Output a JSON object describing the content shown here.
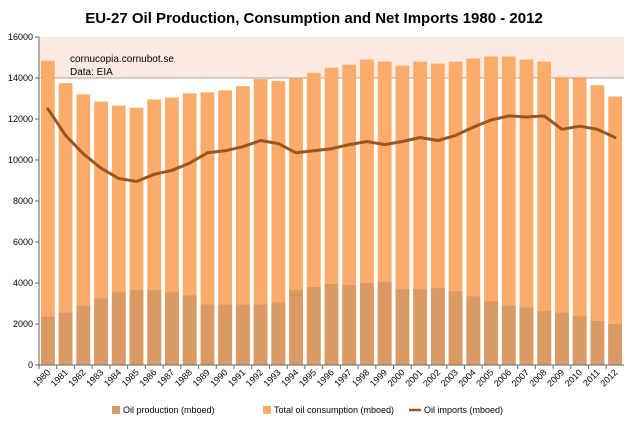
{
  "chart_data": {
    "type": "bar",
    "title": "EU-27 Oil Production, Consumption and Net Imports 1980 - 2012",
    "annotations": [
      "cornucopia.cornubot.se",
      "Data: EIA"
    ],
    "xlabel": "",
    "ylabel": "",
    "ylim": [
      0,
      16000
    ],
    "yticks": [
      0,
      2000,
      4000,
      6000,
      8000,
      10000,
      12000,
      14000,
      16000
    ],
    "grid": false,
    "legend_position": "bottom",
    "highlight_band": [
      14000,
      16000
    ],
    "categories": [
      "1980",
      "1981",
      "1982",
      "1983",
      "1984",
      "1985",
      "1986",
      "1987",
      "1988",
      "1989",
      "1990",
      "1991",
      "1992",
      "1993",
      "1994",
      "1995",
      "1996",
      "1997",
      "1998",
      "1999",
      "2000",
      "2001",
      "2002",
      "2003",
      "2004",
      "2005",
      "2006",
      "2007",
      "2008",
      "2009",
      "2010",
      "2011",
      "2012"
    ],
    "series": [
      {
        "name": "Oil production (mboed)",
        "kind": "bar",
        "color": "#d99a66",
        "values": [
          2350,
          2550,
          2900,
          3250,
          3550,
          3650,
          3650,
          3550,
          3400,
          2950,
          2950,
          2950,
          2950,
          3050,
          3650,
          3800,
          3950,
          3900,
          4000,
          4050,
          3700,
          3700,
          3750,
          3600,
          3350,
          3100,
          2900,
          2800,
          2650,
          2550,
          2400,
          2150,
          2000
        ]
      },
      {
        "name": "Total oil consumption (mboed)",
        "kind": "bar",
        "color": "#fbac6a",
        "values": [
          14850,
          13750,
          13200,
          12850,
          12650,
          12550,
          12950,
          13050,
          13250,
          13300,
          13400,
          13600,
          13950,
          13850,
          14000,
          14250,
          14500,
          14650,
          14900,
          14800,
          14600,
          14800,
          14700,
          14800,
          14950,
          15050,
          15050,
          14900,
          14800,
          14050,
          14050,
          13650,
          13100
        ]
      },
      {
        "name": "Oil imports (mboed)",
        "kind": "line",
        "color": "#9c551f",
        "values": [
          12500,
          11200,
          10300,
          9600,
          9100,
          8950,
          9300,
          9500,
          9850,
          10350,
          10450,
          10650,
          10950,
          10800,
          10350,
          10450,
          10550,
          10750,
          10900,
          10750,
          10900,
          11100,
          10950,
          11200,
          11600,
          11950,
          12150,
          12100,
          12150,
          11500,
          11650,
          11500,
          11100
        ]
      }
    ]
  }
}
